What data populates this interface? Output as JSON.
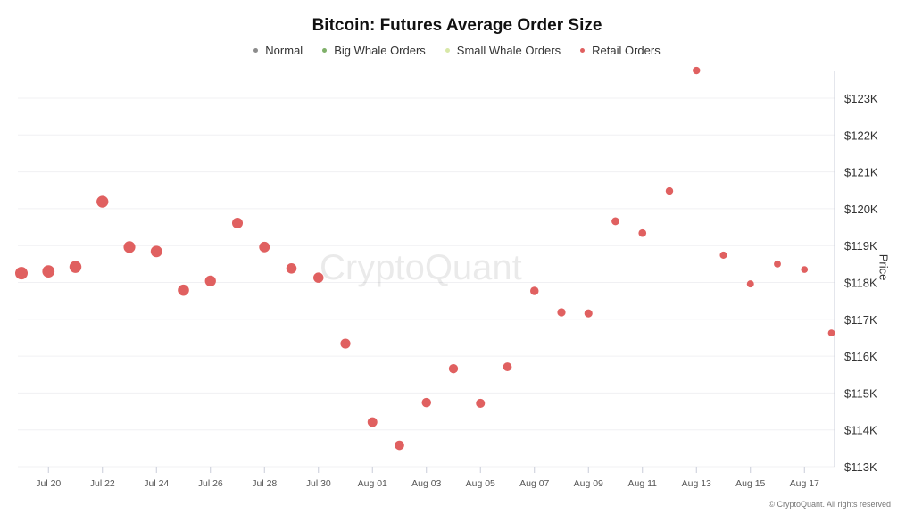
{
  "chart_data": {
    "type": "scatter",
    "title": "Bitcoin: Futures Average Order Size",
    "xlabel": "",
    "ylabel": "Price",
    "ylim": [
      113,
      124
    ],
    "y_unit": "K USD",
    "grid": true,
    "legend_placement": "top-center",
    "legend": [
      {
        "name": "Normal",
        "color": "#8c8c8c"
      },
      {
        "name": "Big Whale Orders",
        "color": "#7fb069"
      },
      {
        "name": "Small Whale Orders",
        "color": "#d8e8a8"
      },
      {
        "name": "Retail Orders",
        "color": "#e06060"
      }
    ],
    "y_ticks": [
      "$113K",
      "$114K",
      "$115K",
      "$116K",
      "$117K",
      "$118K",
      "$119K",
      "$120K",
      "$121K",
      "$122K",
      "$123K"
    ],
    "x_ticks": [
      "Jul 20",
      "Jul 22",
      "Jul 24",
      "Jul 26",
      "Jul 28",
      "Jul 30",
      "Aug 01",
      "Aug 03",
      "Aug 05",
      "Aug 07",
      "Aug 09",
      "Aug 11",
      "Aug 13",
      "Aug 15",
      "Aug 17"
    ],
    "x_start": "Jul 19",
    "series": [
      {
        "name": "Retail Orders",
        "color": "#e06060",
        "dates": [
          "Jul 19",
          "Jul 20",
          "Jul 21",
          "Jul 22",
          "Jul 23",
          "Jul 24",
          "Jul 25",
          "Jul 26",
          "Jul 27",
          "Jul 28",
          "Jul 29",
          "Jul 30",
          "Jul 31",
          "Aug 01",
          "Aug 02",
          "Aug 03",
          "Aug 04",
          "Aug 05",
          "Aug 06",
          "Aug 07",
          "Aug 08",
          "Aug 09",
          "Aug 10",
          "Aug 11",
          "Aug 12",
          "Aug 13",
          "Aug 14",
          "Aug 15",
          "Aug 16",
          "Aug 17",
          "Aug 18"
        ],
        "values": [
          118.25,
          118.3,
          118.42,
          120.19,
          118.96,
          118.84,
          117.79,
          118.04,
          119.61,
          118.96,
          118.38,
          118.13,
          116.34,
          114.21,
          113.58,
          114.74,
          115.66,
          114.72,
          115.71,
          117.77,
          117.19,
          117.16,
          119.66,
          119.34,
          120.48,
          123.75,
          118.74,
          117.96,
          118.5,
          118.35,
          116.63
        ],
        "marker_size_rel": [
          1.0,
          0.98,
          0.96,
          0.95,
          0.94,
          0.92,
          0.9,
          0.88,
          0.86,
          0.85,
          0.83,
          0.82,
          0.8,
          0.78,
          0.76,
          0.75,
          0.74,
          0.72,
          0.7,
          0.68,
          0.66,
          0.65,
          0.63,
          0.62,
          0.6,
          0.6,
          0.58,
          0.57,
          0.56,
          0.55,
          0.55
        ]
      }
    ]
  },
  "watermark": "CryptoQuant",
  "credit": "© CryptoQuant. All rights reserved"
}
